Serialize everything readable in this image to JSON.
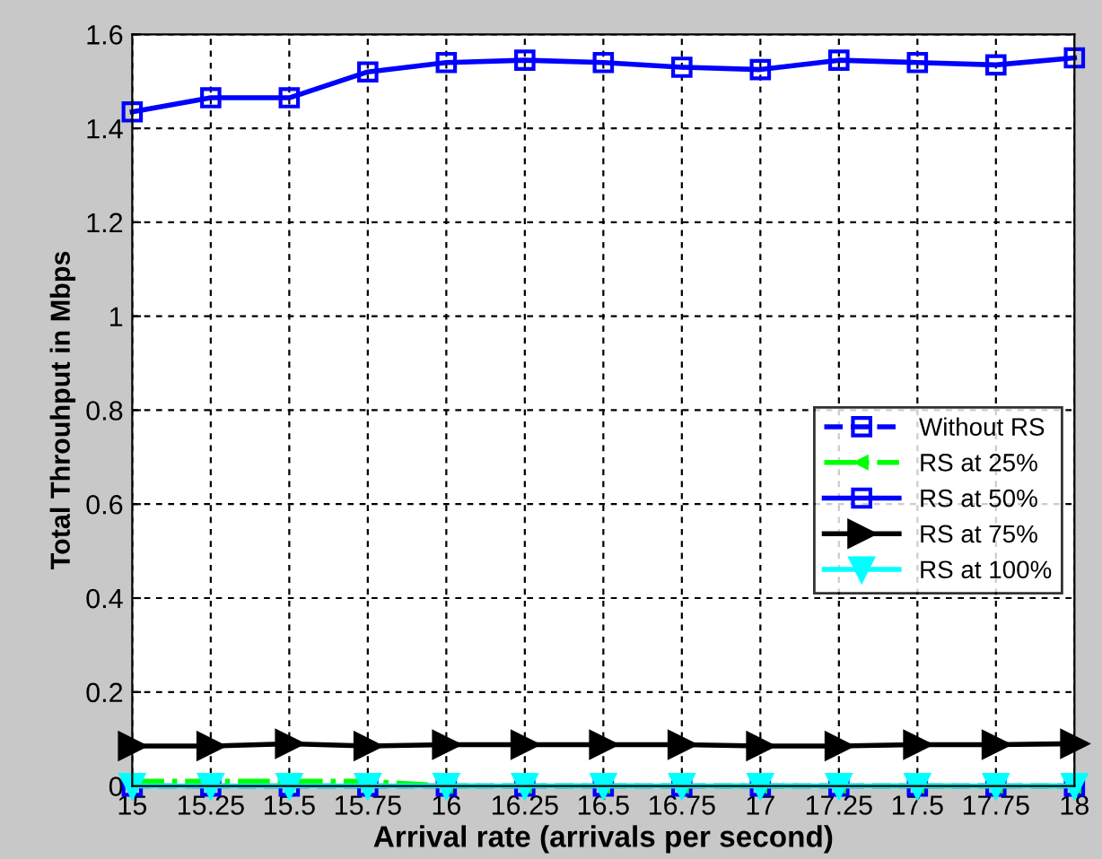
{
  "chart_data": {
    "type": "line",
    "xlabel": "Arrival rate (arrivals per second)",
    "ylabel": "Total Throuhput in Mbps",
    "x": [
      15,
      15.25,
      15.5,
      15.75,
      16,
      16.25,
      16.5,
      16.75,
      17,
      17.25,
      17.5,
      17.75,
      18
    ],
    "series": [
      {
        "name": "Without RS",
        "color": "#0000ff",
        "marker": "square",
        "line_style": "dashed",
        "values": [
          0,
          0,
          0,
          0,
          0,
          0,
          0,
          0,
          0,
          0,
          0,
          0,
          0
        ]
      },
      {
        "name": "RS at 25%",
        "color": "#00ff00",
        "marker": "triangle_left",
        "line_style": "dashdot",
        "values": [
          0.01,
          0.01,
          0.01,
          0.01,
          0,
          0,
          0,
          0,
          0,
          0,
          0,
          0,
          0
        ]
      },
      {
        "name": "RS at 50%",
        "color": "#0000ff",
        "marker": "square",
        "line_style": "solid",
        "values": [
          1.435,
          1.465,
          1.465,
          1.52,
          1.54,
          1.545,
          1.54,
          1.53,
          1.525,
          1.545,
          1.54,
          1.535,
          1.55
        ]
      },
      {
        "name": "RS at 75%",
        "color": "#000000",
        "marker": "triangle_right",
        "line_style": "solid",
        "values": [
          0.085,
          0.085,
          0.09,
          0.085,
          0.088,
          0.088,
          0.088,
          0.088,
          0.085,
          0.085,
          0.088,
          0.088,
          0.09
        ]
      },
      {
        "name": "RS at 100%",
        "color": "#00ffff",
        "marker": "triangle_down",
        "line_style": "solid",
        "values": [
          0,
          0,
          0,
          0,
          0,
          0,
          0,
          0,
          0,
          0,
          0,
          0,
          0
        ]
      }
    ],
    "xlim": [
      15,
      18
    ],
    "ylim": [
      0,
      1.6
    ],
    "xticks": [
      15,
      15.25,
      15.5,
      15.75,
      16,
      16.25,
      16.5,
      16.75,
      17,
      17.25,
      17.5,
      17.75,
      18
    ],
    "yticks": [
      0,
      0.2,
      0.4,
      0.6,
      0.8,
      1,
      1.2,
      1.4,
      1.6
    ],
    "grid": true,
    "legend": "right"
  }
}
